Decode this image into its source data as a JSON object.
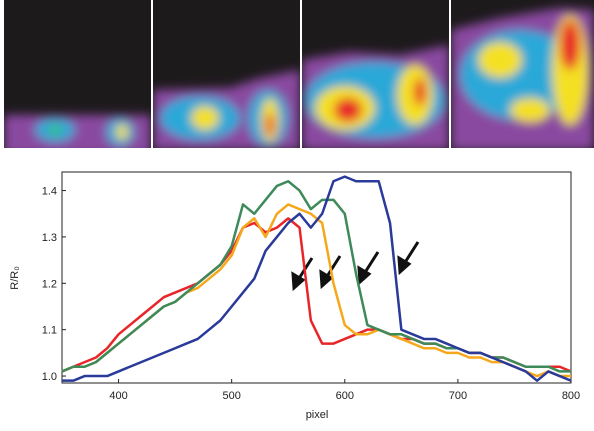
{
  "chart_data": {
    "type": "line",
    "xlabel": "pixel",
    "ylabel": "R/R₀",
    "x": [
      350,
      360,
      370,
      380,
      390,
      400,
      410,
      420,
      430,
      440,
      450,
      460,
      470,
      480,
      490,
      500,
      510,
      520,
      530,
      540,
      550,
      560,
      570,
      580,
      590,
      600,
      610,
      620,
      630,
      640,
      650,
      660,
      670,
      680,
      690,
      700,
      710,
      720,
      730,
      740,
      750,
      760,
      770,
      780,
      790,
      800
    ],
    "series": [
      {
        "color": "#e8262a",
        "values": [
          1.01,
          1.02,
          1.03,
          1.04,
          1.06,
          1.09,
          1.11,
          1.13,
          1.15,
          1.17,
          1.18,
          1.19,
          1.2,
          1.22,
          1.24,
          1.27,
          1.32,
          1.33,
          1.31,
          1.32,
          1.34,
          1.32,
          1.12,
          1.07,
          1.07,
          1.08,
          1.09,
          1.1,
          1.1,
          1.09,
          1.08,
          1.08,
          1.07,
          1.07,
          1.06,
          1.06,
          1.05,
          1.05,
          1.04,
          1.04,
          1.03,
          1.02,
          1.02,
          1.02,
          1.02,
          1.01
        ]
      },
      {
        "color": "#f5a81c",
        "values": [
          1.01,
          1.02,
          1.02,
          1.03,
          1.05,
          1.07,
          1.09,
          1.11,
          1.13,
          1.15,
          1.16,
          1.18,
          1.19,
          1.21,
          1.23,
          1.26,
          1.32,
          1.34,
          1.3,
          1.35,
          1.37,
          1.36,
          1.35,
          1.33,
          1.2,
          1.11,
          1.09,
          1.09,
          1.1,
          1.09,
          1.08,
          1.07,
          1.06,
          1.06,
          1.05,
          1.05,
          1.04,
          1.04,
          1.03,
          1.03,
          1.02,
          1.01,
          1.0,
          1.01,
          1.0,
          1.0
        ]
      },
      {
        "color": "#3d8a5a",
        "values": [
          1.01,
          1.02,
          1.02,
          1.03,
          1.05,
          1.07,
          1.09,
          1.11,
          1.13,
          1.15,
          1.16,
          1.18,
          1.2,
          1.22,
          1.24,
          1.28,
          1.37,
          1.35,
          1.38,
          1.41,
          1.42,
          1.4,
          1.36,
          1.38,
          1.38,
          1.35,
          1.22,
          1.11,
          1.1,
          1.09,
          1.09,
          1.08,
          1.07,
          1.07,
          1.06,
          1.06,
          1.05,
          1.05,
          1.04,
          1.04,
          1.03,
          1.02,
          1.02,
          1.02,
          1.01,
          1.01
        ]
      },
      {
        "color": "#2a3a9a",
        "values": [
          0.99,
          0.99,
          1.0,
          1.0,
          1.0,
          1.01,
          1.02,
          1.03,
          1.04,
          1.05,
          1.06,
          1.07,
          1.08,
          1.1,
          1.12,
          1.15,
          1.18,
          1.21,
          1.27,
          1.3,
          1.33,
          1.35,
          1.32,
          1.35,
          1.42,
          1.43,
          1.42,
          1.42,
          1.42,
          1.33,
          1.1,
          1.09,
          1.08,
          1.08,
          1.07,
          1.06,
          1.05,
          1.05,
          1.04,
          1.03,
          1.02,
          1.01,
          0.99,
          1.01,
          1.0,
          0.99
        ]
      }
    ],
    "xlim": [
      350,
      800
    ],
    "xticks": [
      400,
      500,
      600,
      700,
      800
    ],
    "ylim": [
      0.985,
      1.44
    ],
    "yticks": [
      {
        "value": 1,
        "label": "1.0"
      },
      1.1,
      1.2,
      1.3,
      1.4
    ]
  }
}
